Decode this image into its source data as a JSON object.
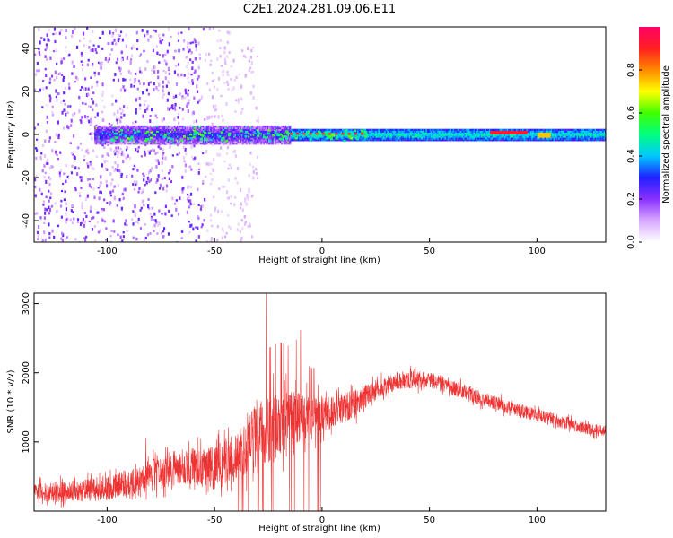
{
  "title": "C2E1.2024.281.09.06.E11",
  "colors": {
    "snr_line": "#ee3333",
    "background": "#ffffff",
    "axis": "#000000"
  },
  "chart_data": [
    {
      "type": "heatmap",
      "xlabel": "Height of straight line (km)",
      "ylabel": "Frequency (Hz)",
      "xlim": [
        -134,
        132
      ],
      "ylim": [
        -50,
        50
      ],
      "xticks": [
        -100,
        -50,
        0,
        50,
        100
      ],
      "xtick_labels": [
        "-100",
        "-50",
        "0",
        "50",
        "100"
      ],
      "yticks": [
        -40,
        -20,
        0,
        20,
        40
      ],
      "ytick_labels": [
        "-40",
        "-20",
        "0",
        "20",
        "40"
      ],
      "colormap": [
        "#ffffff",
        "#a050ff",
        "#2020ff",
        "#00ffff",
        "#00ff00",
        "#ffff00",
        "#ff8800",
        "#ff0000"
      ],
      "colorbar": {
        "label": "Normalized spectral amplitude",
        "range": [
          0,
          1
        ],
        "ticks": [
          0.0,
          0.2,
          0.4,
          0.6,
          0.8
        ],
        "tick_labels": [
          "0.0",
          "0.2",
          "0.4",
          "0.6",
          "0.8"
        ]
      },
      "features": [
        {
          "x_range": [
            -134,
            -55
          ],
          "freq_range": [
            -50,
            50
          ],
          "level": 0.2,
          "note": "scattered noise"
        },
        {
          "x_range": [
            -105,
            -15
          ],
          "freq_center": 0,
          "freq_halfwidth": 4,
          "level": 0.35
        },
        {
          "x_range": [
            -15,
            132
          ],
          "freq_center": 0,
          "freq_halfwidth": 2,
          "level": 0.5
        },
        {
          "x_range": [
            78,
            95
          ],
          "freq_center": 1,
          "freq_halfwidth": 1,
          "level": 0.95
        }
      ],
      "grid": false
    },
    {
      "type": "line",
      "xlabel": "Height of straight line (km)",
      "ylabel": "SNR (10 * v/v)",
      "xlim": [
        -134,
        132
      ],
      "ylim": [
        0,
        3150
      ],
      "xticks": [
        -100,
        -50,
        0,
        50,
        100
      ],
      "xtick_labels": [
        "-100",
        "-50",
        "0",
        "50",
        "100"
      ],
      "yticks": [
        1000,
        2000,
        3000
      ],
      "ytick_labels": [
        "1000",
        "2000",
        "3000"
      ],
      "series": [
        {
          "x": [
            -134,
            -120,
            -110,
            -100,
            -90,
            -80,
            -70,
            -60,
            -50,
            -45,
            -40,
            -35,
            -30,
            -25,
            -20,
            -15,
            -10,
            -5,
            0,
            5,
            10,
            15,
            20,
            25,
            30,
            35,
            40,
            45,
            50,
            55,
            60,
            65,
            70,
            75,
            80,
            85,
            90,
            95,
            100,
            105,
            110,
            115,
            120,
            125,
            132
          ],
          "y": [
            260,
            280,
            300,
            330,
            400,
            500,
            620,
            650,
            620,
            700,
            800,
            950,
            1100,
            1150,
            1250,
            1300,
            1350,
            1350,
            1400,
            1450,
            1500,
            1550,
            1650,
            1750,
            1820,
            1880,
            1900,
            1900,
            1880,
            1850,
            1800,
            1740,
            1680,
            1620,
            1570,
            1520,
            1470,
            1430,
            1390,
            1350,
            1300,
            1260,
            1220,
            1180,
            1150
          ],
          "spread": [
            300,
            300,
            320,
            380,
            420,
            480,
            500,
            520,
            650,
            700,
            700,
            850,
            950,
            1000,
            1000,
            900,
            700,
            600,
            550,
            500,
            450,
            400,
            350,
            300,
            280,
            270,
            260,
            250,
            250,
            240,
            230,
            220,
            220,
            210,
            200,
            200,
            190,
            190,
            190,
            180,
            180,
            180,
            170,
            170,
            170
          ]
        }
      ],
      "peaks": [
        {
          "x": -26,
          "y": 3150
        },
        {
          "x": -10,
          "y": 2620
        },
        {
          "x": -12,
          "y": 2480
        },
        {
          "x": -82,
          "y": 1060
        },
        {
          "x": -48,
          "y": 1180
        }
      ],
      "grid": false
    }
  ]
}
